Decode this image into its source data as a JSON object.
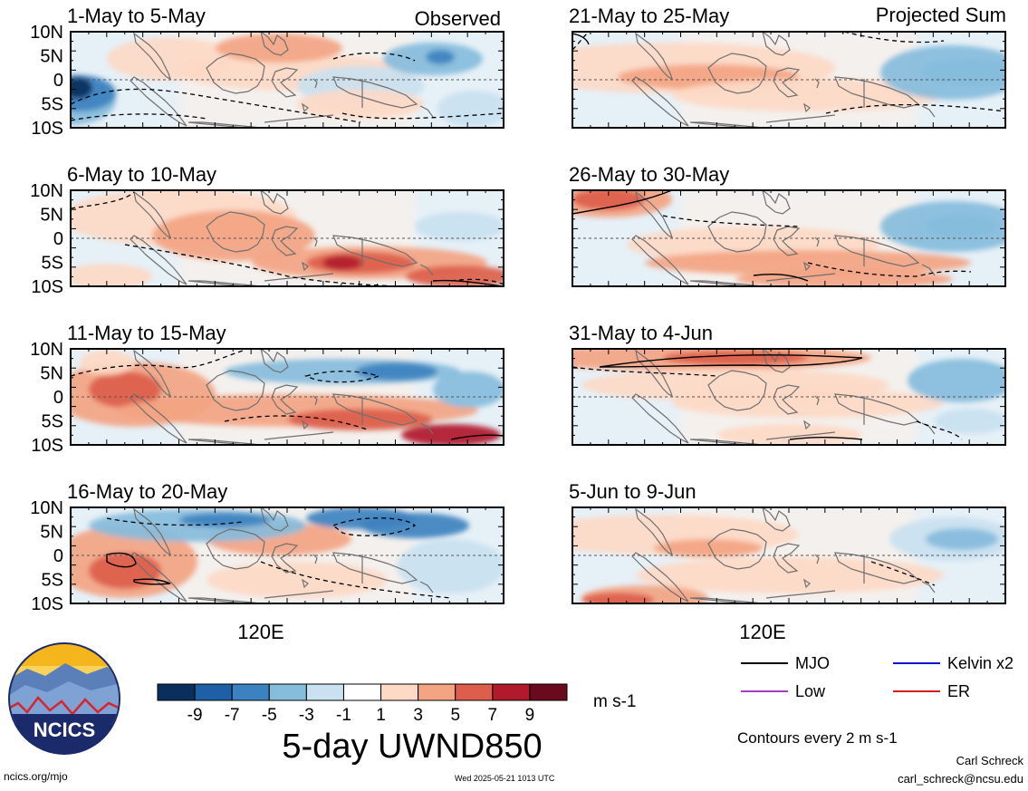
{
  "panels": {
    "observed": {
      "label": "Observed",
      "items": [
        {
          "title": "1-May to 5-May"
        },
        {
          "title": "6-May to 10-May"
        },
        {
          "title": "11-May to 15-May"
        },
        {
          "title": "16-May to 20-May"
        }
      ]
    },
    "projected": {
      "label": "Projected Sum",
      "items": [
        {
          "title": "21-May to 25-May"
        },
        {
          "title": "26-May to 30-May"
        },
        {
          "title": "31-May to 4-Jun"
        },
        {
          "title": "5-Jun to 9-Jun"
        }
      ]
    }
  },
  "axes": {
    "lat_labels": [
      "10N",
      "5N",
      "0",
      "5S",
      "10S"
    ],
    "lon_label": "120E"
  },
  "colorbar": {
    "ticks": [
      "-9",
      "-7",
      "-5",
      "-3",
      "-1",
      "1",
      "3",
      "5",
      "7",
      "9"
    ],
    "units": "m s-1",
    "title": "5-day UWND850",
    "colors": [
      "#0b2f5c",
      "#1f5fa8",
      "#3d82c0",
      "#86bcdc",
      "#c9e1f0",
      "#ffffff",
      "#fdd9c6",
      "#f3a483",
      "#dc5e4b",
      "#b11a2c",
      "#6b0a1e"
    ]
  },
  "legend": {
    "entries": [
      {
        "label": "MJO",
        "color": "#000000"
      },
      {
        "label": "Kelvin x2",
        "color": "#1010d0"
      },
      {
        "label": "Low",
        "color": "#a040c0"
      },
      {
        "label": "ER",
        "color": "#d02020"
      }
    ],
    "note": "Contours every 2 m s-1"
  },
  "logo": {
    "text": "NCICS"
  },
  "footer": {
    "url": "ncics.org/mjo",
    "timestamp": "Wed 2025-05-21 1013 UTC",
    "author": "Carl Schreck",
    "email": "carl_schreck@ncsu.edu"
  }
}
